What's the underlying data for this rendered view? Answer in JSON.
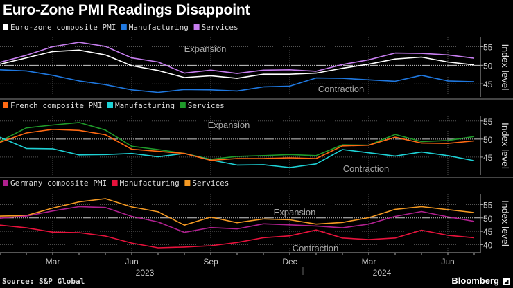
{
  "title": "Euro-Zone PMI Readings Disappoint",
  "source": "Source: S&P Global",
  "brand": "Bloomberg",
  "chart_data": [
    {
      "type": "line",
      "x": [
        "2023-01",
        "2023-02",
        "2023-03",
        "2023-04",
        "2023-05",
        "2023-06",
        "2023-07",
        "2023-08",
        "2023-09",
        "2023-10",
        "2023-11",
        "2023-12",
        "2024-01",
        "2024-02",
        "2024-03",
        "2024-04",
        "2024-05",
        "2024-06",
        "2024-07"
      ],
      "ylabel": "Index level",
      "ylim": [
        41.5,
        57.5
      ],
      "yticks": [
        45,
        50,
        55
      ],
      "annotations": [
        "Expansion",
        "Contraction"
      ],
      "series": [
        {
          "name": "Euro-zone composite PMI",
          "color": "#ffffff",
          "values": [
            50.3,
            52.0,
            53.7,
            54.1,
            52.8,
            49.9,
            48.6,
            46.7,
            47.2,
            46.5,
            47.6,
            47.6,
            47.9,
            49.2,
            50.3,
            51.7,
            52.2,
            50.9,
            50.1
          ]
        },
        {
          "name": "Manufacturing",
          "color": "#1f78e0",
          "values": [
            48.8,
            48.5,
            47.3,
            45.8,
            44.8,
            43.4,
            42.7,
            43.5,
            43.4,
            43.1,
            44.2,
            44.4,
            46.6,
            46.5,
            46.1,
            45.7,
            47.3,
            45.8,
            45.6
          ]
        },
        {
          "name": "Services",
          "color": "#c77ef0",
          "values": [
            50.8,
            52.7,
            55.0,
            56.2,
            55.1,
            52.0,
            50.9,
            47.9,
            48.7,
            47.8,
            48.7,
            48.8,
            48.4,
            50.2,
            51.5,
            53.3,
            53.2,
            52.8,
            51.9
          ]
        }
      ]
    },
    {
      "type": "line",
      "x": [
        "2023-01",
        "2023-02",
        "2023-03",
        "2023-04",
        "2023-05",
        "2023-06",
        "2023-07",
        "2023-08",
        "2023-09",
        "2023-10",
        "2023-11",
        "2023-12",
        "2024-01",
        "2024-02",
        "2024-03",
        "2024-04",
        "2024-05",
        "2024-06",
        "2024-07"
      ],
      "ylabel": "Index level",
      "ylim": [
        40,
        56.3
      ],
      "yticks": [
        45,
        50,
        55
      ],
      "annotations": [
        "Expansion",
        "Contraction"
      ],
      "series": [
        {
          "name": "French composite PMI",
          "color": "#ff6a13",
          "values": [
            49.1,
            51.7,
            52.7,
            52.4,
            51.2,
            47.2,
            46.6,
            46.0,
            44.1,
            44.6,
            44.6,
            44.8,
            44.6,
            48.1,
            48.3,
            50.5,
            48.9,
            48.8,
            49.5
          ]
        },
        {
          "name": "Manufacturing",
          "color": "#1ed2d6",
          "values": [
            50.5,
            47.4,
            47.3,
            45.6,
            45.7,
            46.0,
            45.1,
            46.0,
            44.2,
            42.8,
            42.9,
            42.1,
            43.1,
            47.1,
            46.2,
            45.3,
            46.4,
            45.4,
            44.0
          ]
        },
        {
          "name": "Services",
          "color": "#1f9a2a",
          "values": [
            49.4,
            53.1,
            53.9,
            54.6,
            52.5,
            48.0,
            47.1,
            46.0,
            44.4,
            45.2,
            45.4,
            45.7,
            45.4,
            48.4,
            48.3,
            51.3,
            49.3,
            49.6,
            50.7
          ]
        }
      ]
    },
    {
      "type": "line",
      "x": [
        "2023-01",
        "2023-02",
        "2023-03",
        "2023-04",
        "2023-05",
        "2023-06",
        "2023-07",
        "2023-08",
        "2023-09",
        "2023-10",
        "2023-11",
        "2023-12",
        "2024-01",
        "2024-02",
        "2024-03",
        "2024-04",
        "2024-05",
        "2024-06",
        "2024-07"
      ],
      "ylabel": "Index level",
      "ylim": [
        37,
        59
      ],
      "yticks": [
        40,
        45,
        50,
        55
      ],
      "annotations": [
        "Expansion",
        "Contraction"
      ],
      "xtick_labels": [
        "Mar",
        "Jun",
        "Sep",
        "Dec",
        "Mar",
        "Jun"
      ],
      "year_labels": [
        "2023",
        "2024"
      ],
      "series": [
        {
          "name": "Germany composite PMI",
          "color": "#b0208f",
          "values": [
            49.9,
            50.7,
            52.6,
            54.2,
            53.9,
            50.6,
            48.5,
            44.6,
            46.4,
            45.9,
            47.8,
            47.4,
            47.0,
            46.3,
            47.7,
            50.6,
            52.4,
            50.4,
            48.7
          ]
        },
        {
          "name": "Manufacturing",
          "color": "#e8123c",
          "values": [
            47.3,
            46.3,
            44.7,
            44.5,
            43.2,
            40.6,
            38.8,
            39.1,
            39.6,
            40.8,
            42.6,
            43.3,
            45.5,
            42.5,
            41.9,
            42.5,
            45.4,
            43.5,
            42.6
          ]
        },
        {
          "name": "Services",
          "color": "#f59a23",
          "values": [
            50.7,
            50.9,
            53.7,
            56.0,
            57.2,
            54.1,
            52.3,
            47.3,
            50.3,
            48.2,
            49.6,
            49.3,
            47.7,
            48.3,
            50.1,
            53.2,
            54.2,
            53.1,
            52.0
          ]
        }
      ]
    }
  ]
}
